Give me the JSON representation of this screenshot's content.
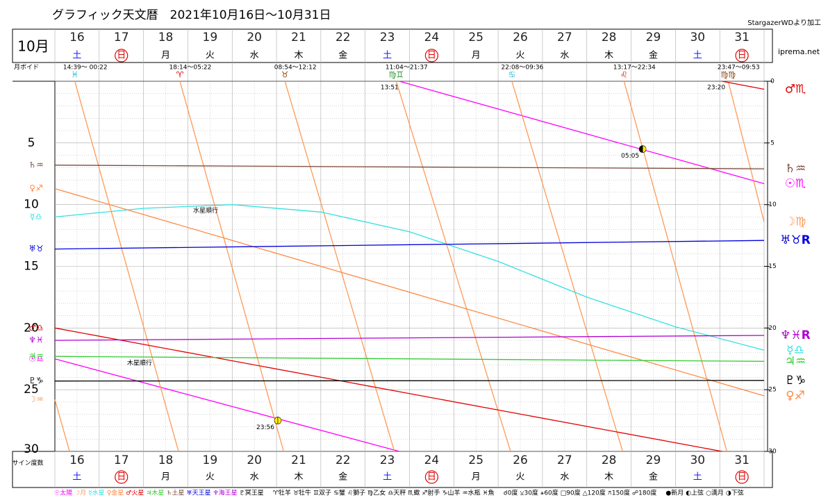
{
  "chart_data": {
    "type": "line",
    "title": "グラフィック天文暦　2021年10月16日～10月31日",
    "source": "StargazerWDより加工",
    "site": "iprema.net",
    "month": "10月",
    "void_label": "月ボイド",
    "y_label": "サイン度数",
    "categories": [
      "16",
      "17",
      "18",
      "19",
      "20",
      "21",
      "22",
      "23",
      "24",
      "25",
      "26",
      "27",
      "28",
      "29",
      "30",
      "31"
    ],
    "weekdays": [
      "土",
      "日",
      "月",
      "火",
      "水",
      "木",
      "金",
      "土",
      "日",
      "月",
      "火",
      "水",
      "木",
      "金",
      "土",
      "日"
    ],
    "weekday_colors": [
      "#1a1aff",
      "#e00000",
      "#000",
      "#000",
      "#000",
      "#000",
      "#000",
      "#1a1aff",
      "#e00000",
      "#000",
      "#000",
      "#000",
      "#000",
      "#000",
      "#1a1aff",
      "#e00000"
    ],
    "circled": [
      false,
      true,
      false,
      false,
      false,
      false,
      false,
      false,
      true,
      false,
      false,
      false,
      false,
      false,
      false,
      true
    ],
    "xlim": [
      16,
      32
    ],
    "ylim": [
      0,
      30
    ],
    "yticks": [
      0,
      5,
      10,
      15,
      20,
      25,
      30
    ],
    "grid": true,
    "voids": [
      {
        "time": "14:39～ 00:22",
        "sign": "♓",
        "x": 16.45,
        "color": "#22bbdd"
      },
      {
        "time": "18:14～05:22",
        "sign": "♈",
        "x": 18.82,
        "color": "#e00000"
      },
      {
        "time": "08:54～12:12",
        "sign": "♉",
        "x": 21.19,
        "color": "#8b4513"
      },
      {
        "time": "11:04～21:37",
        "sign": "♍♊",
        "x": 23.7,
        "color": "#2a9a2a"
      },
      {
        "time": "22:08～09:36",
        "sign": "♋",
        "x": 26.31,
        "color": "#22bbdd"
      },
      {
        "time": "13:17～22:34",
        "sign": "♌",
        "x": 28.84,
        "color": "#e00000"
      },
      {
        "time": "23:47～09:53",
        "sign": "♍♍",
        "x": 31.19,
        "color": "#8b4513"
      }
    ],
    "series": [
      {
        "name": "☉太陽",
        "color": "#ff00ff",
        "left_label": "☉♎",
        "right_label": "☉♏",
        "x": [
          16,
          23.77,
          23.77,
          23.77,
          32
        ],
        "values": [
          22.5,
          30,
          null,
          0,
          8.3
        ]
      },
      {
        "name": "☽月",
        "color": "#ff9955",
        "left_label": "☽♒",
        "right_label": "☽♍",
        "x": [
          16,
          16.33,
          16.33,
          16.45,
          18.79,
          18.79,
          18.82,
          21.16,
          21.16,
          21.19,
          23.66,
          23.66,
          23.7,
          26.28,
          26.28,
          26.31,
          28.81,
          28.81,
          28.84,
          31.16,
          31.16,
          31.19,
          32
        ],
        "values": [
          25.8,
          30,
          null,
          0,
          30,
          null,
          0,
          30,
          null,
          0,
          30,
          null,
          0,
          30,
          null,
          0,
          30,
          null,
          0,
          30,
          null,
          0,
          11.4
        ]
      },
      {
        "name": "☿水星",
        "color": "#33e0e0",
        "left_label": "☿♎",
        "right_label": "☿♎",
        "x": [
          16,
          18,
          20,
          22,
          24,
          26,
          28,
          30,
          32
        ],
        "values": [
          11.0,
          10.3,
          10.0,
          10.6,
          12.2,
          14.6,
          17.5,
          19.9,
          21.8
        ]
      },
      {
        "name": "♀金星",
        "color": "#ff8844",
        "left_label": "♀♐",
        "right_label": "♀♐",
        "x": [
          16,
          32
        ],
        "values": [
          8.7,
          25.5
        ]
      },
      {
        "name": "♂火星",
        "color": "#e00000",
        "left_label": "♂♎",
        "right_label": "♂♏",
        "x": [
          16,
          31.05,
          31.05,
          31.05,
          32
        ],
        "values": [
          20,
          30,
          null,
          0,
          0.65
        ]
      },
      {
        "name": "♃木星",
        "color": "#33cc33",
        "left_label": "♃♒",
        "right_label": "♃♒",
        "x": [
          16,
          32
        ],
        "values": [
          22.3,
          22.7
        ]
      },
      {
        "name": "♄土星",
        "color": "#7a4a3a",
        "left_label": "♄♒",
        "right_label": "♄♒",
        "x": [
          16,
          32
        ],
        "values": [
          6.8,
          7.1
        ]
      },
      {
        "name": "♅天王星",
        "color": "#0000dd",
        "left_label": "♅♉",
        "right_label": "♅♉R",
        "x": [
          16,
          32
        ],
        "values": [
          13.6,
          12.9
        ]
      },
      {
        "name": "♆海王星",
        "color": "#b000d0",
        "left_label": "♆♓",
        "right_label": "♆♓R",
        "x": [
          16,
          32
        ],
        "values": [
          21.0,
          20.6
        ]
      },
      {
        "name": "♇冥王星",
        "color": "#000000",
        "left_label": "♇♑",
        "right_label": "♇♑",
        "x": [
          16,
          32
        ],
        "values": [
          24.3,
          24.25
        ]
      }
    ],
    "phases": [
      {
        "label": "23:56",
        "x": 21.03,
        "y": 27.5,
        "colors": [
          "#ffee00",
          "#ffee00"
        ]
      },
      {
        "label": "05:05",
        "x": 29.26,
        "y": 5.5,
        "colors": [
          "#000000",
          "#ffee00"
        ]
      }
    ],
    "annotations": [
      {
        "text": "13:51",
        "x": 23.77,
        "y": 0
      },
      {
        "text": "23:20",
        "x": 31.14,
        "y": 0
      },
      {
        "text": "水星順行",
        "x": 19.62,
        "y": 10.0
      },
      {
        "text": "木星順行",
        "x": 18.13,
        "y": 22.35
      }
    ],
    "legend_signs": [
      "♈牡羊",
      "♉牡牛",
      "♊双子",
      "♋蟹",
      "♌獅子",
      "♍乙女",
      "♎天秤",
      "♏蠍",
      "♐射手",
      "♑山羊",
      "♒水瓶",
      "♓魚"
    ],
    "legend_aspects": [
      "☌0度",
      "⚺30度",
      "⚹60度",
      "□90度",
      "△120度",
      "⚻150度",
      "☍180度"
    ],
    "legend_phases": [
      "●新月",
      "◐上弦",
      "○満月",
      "◑下弦"
    ]
  }
}
